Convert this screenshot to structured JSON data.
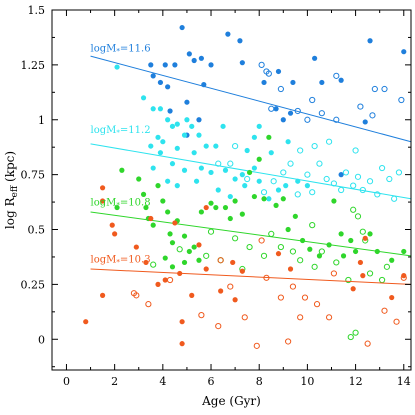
{
  "chart_data": {
    "type": "scatter",
    "title": "",
    "xlabel": "Age (Gyr)",
    "ylabel": "log R",
    "ylabel_sub": "eff",
    "ylabel_unit": " (kpc)",
    "xlim": [
      -0.6,
      14.3
    ],
    "ylim": [
      -0.14,
      1.5
    ],
    "xticks": [
      0,
      2,
      4,
      6,
      8,
      10,
      12,
      14
    ],
    "xtick_labels": [
      "0",
      "2",
      "4",
      "6",
      "8",
      "10",
      "12",
      "14"
    ],
    "yticks": [
      0,
      0.25,
      0.5,
      0.75,
      1.0,
      1.25,
      1.5
    ],
    "ytick_labels": [
      "0",
      "0.25",
      "0.5",
      "0.75",
      "1",
      "1.25",
      "1.5"
    ],
    "grid": false,
    "series": [
      {
        "name": "logM*=11.6",
        "label_main": "logM",
        "label_sub": "*",
        "label_value": "=11.6",
        "label_anchor": [
          1.0,
          1.31
        ],
        "color": "#1f7fdc",
        "fit": {
          "x": [
            1.0,
            14.3
          ],
          "y": [
            1.29,
            0.9
          ]
        },
        "filled": [
          [
            3.5,
            1.25
          ],
          [
            4.1,
            1.25
          ],
          [
            3.6,
            1.2
          ],
          [
            3.9,
            1.17
          ],
          [
            4.2,
            1.15
          ],
          [
            4.5,
            1.25
          ],
          [
            4.8,
            1.42
          ],
          [
            5.1,
            1.3
          ],
          [
            5.3,
            1.27
          ],
          [
            5.6,
            1.28
          ],
          [
            5.7,
            1.16
          ],
          [
            6.0,
            1.25
          ],
          [
            5.0,
            1.08
          ],
          [
            4.3,
            1.04
          ],
          [
            5.5,
            1.0
          ],
          [
            5.0,
            0.93
          ],
          [
            6.7,
            1.39
          ],
          [
            7.2,
            1.36
          ],
          [
            7.3,
            1.26
          ],
          [
            8.2,
            1.17
          ],
          [
            8.8,
            1.22
          ],
          [
            9.4,
            1.17
          ],
          [
            9.3,
            1.03
          ],
          [
            8.7,
            1.05
          ],
          [
            9.0,
            1.0
          ],
          [
            10.3,
            1.28
          ],
          [
            10.6,
            1.17
          ],
          [
            11.4,
            1.18
          ],
          [
            12.6,
            1.36
          ],
          [
            14.0,
            1.31
          ],
          [
            12.4,
            0.99
          ],
          [
            11.4,
            0.75
          ]
        ],
        "open": [
          [
            8.3,
            1.22
          ],
          [
            8.4,
            1.21
          ],
          [
            8.9,
            1.14
          ],
          [
            8.5,
            1.05
          ],
          [
            9.6,
            1.04
          ],
          [
            10.0,
            1.0
          ],
          [
            10.6,
            1.03
          ],
          [
            11.2,
            1.2
          ],
          [
            12.8,
            1.14
          ],
          [
            13.2,
            1.14
          ],
          [
            12.2,
            1.06
          ],
          [
            12.7,
            1.02
          ],
          [
            13.9,
            1.09
          ],
          [
            11.2,
            1.0
          ],
          [
            10.2,
            1.09
          ],
          [
            8.1,
            1.25
          ]
        ]
      },
      {
        "name": "logM*=11.2",
        "label_main": "logM",
        "label_sub": "*",
        "label_value": "=11.2",
        "label_anchor": [
          1.0,
          0.94
        ],
        "color": "#2ee3ee",
        "fit": {
          "x": [
            1.0,
            14.3
          ],
          "y": [
            0.89,
            0.64
          ]
        },
        "filled": [
          [
            2.1,
            1.24
          ],
          [
            3.2,
            1.1
          ],
          [
            3.6,
            1.05
          ],
          [
            3.9,
            1.05
          ],
          [
            4.2,
            1.0
          ],
          [
            4.4,
            0.97
          ],
          [
            4.6,
            0.98
          ],
          [
            4.9,
            0.93
          ],
          [
            5.2,
            0.97
          ],
          [
            5.5,
            0.93
          ],
          [
            4.0,
            0.9
          ],
          [
            3.5,
            0.88
          ],
          [
            3.9,
            0.85
          ],
          [
            4.6,
            0.87
          ],
          [
            5.3,
            0.85
          ],
          [
            5.8,
            0.88
          ],
          [
            6.2,
            0.88
          ],
          [
            4.4,
            0.8
          ],
          [
            4.9,
            0.77
          ],
          [
            5.6,
            0.78
          ],
          [
            6.0,
            0.76
          ],
          [
            6.6,
            0.77
          ],
          [
            7.0,
            0.73
          ],
          [
            7.3,
            0.75
          ],
          [
            7.8,
            0.78
          ],
          [
            4.2,
            0.72
          ],
          [
            4.6,
            0.7
          ],
          [
            5.4,
            0.72
          ],
          [
            6.3,
            0.68
          ],
          [
            6.8,
            0.65
          ],
          [
            7.4,
            0.7
          ],
          [
            8.0,
            0.72
          ],
          [
            8.4,
            0.64
          ],
          [
            8.8,
            0.68
          ],
          [
            9.1,
            0.7
          ],
          [
            9.6,
            0.72
          ],
          [
            10.0,
            0.7
          ],
          [
            3.6,
            0.78
          ],
          [
            3.8,
            0.92
          ],
          [
            5.0,
            1.0
          ],
          [
            7.8,
            0.92
          ],
          [
            8.5,
            0.85
          ],
          [
            9.2,
            0.9
          ],
          [
            6.5,
            0.97
          ],
          [
            7.5,
            0.86
          ],
          [
            8.0,
            0.97
          ]
        ],
        "open": [
          [
            6.3,
            0.8
          ],
          [
            6.8,
            0.8
          ],
          [
            7.0,
            0.88
          ],
          [
            7.5,
            0.73
          ],
          [
            8.2,
            0.67
          ],
          [
            8.6,
            0.72
          ],
          [
            9.0,
            0.76
          ],
          [
            9.3,
            0.8
          ],
          [
            9.6,
            0.66
          ],
          [
            10.0,
            0.75
          ],
          [
            10.2,
            0.67
          ],
          [
            10.5,
            0.8
          ],
          [
            10.8,
            0.73
          ],
          [
            10.9,
            0.9
          ],
          [
            11.1,
            0.71
          ],
          [
            11.4,
            0.68
          ],
          [
            11.6,
            0.76
          ],
          [
            11.9,
            0.7
          ],
          [
            12.1,
            0.74
          ],
          [
            12.3,
            0.68
          ],
          [
            12.6,
            0.72
          ],
          [
            12.9,
            0.66
          ],
          [
            13.1,
            0.78
          ],
          [
            13.4,
            0.73
          ],
          [
            13.6,
            0.64
          ],
          [
            13.8,
            0.76
          ],
          [
            9.7,
            0.86
          ],
          [
            10.3,
            0.88
          ],
          [
            12.0,
            0.86
          ]
        ]
      },
      {
        "name": "logM*=10.8",
        "label_main": "logM",
        "label_sub": "*",
        "label_value": "=10.8",
        "label_anchor": [
          1.0,
          0.61
        ],
        "color": "#2fd62b",
        "fit": {
          "x": [
            1.0,
            14.3
          ],
          "y": [
            0.58,
            0.38
          ]
        },
        "filled": [
          [
            2.1,
            0.6
          ],
          [
            2.3,
            0.77
          ],
          [
            3.0,
            0.73
          ],
          [
            3.2,
            0.66
          ],
          [
            3.3,
            0.6
          ],
          [
            3.4,
            0.55
          ],
          [
            3.6,
            0.52
          ],
          [
            3.8,
            0.7
          ],
          [
            4.0,
            0.63
          ],
          [
            4.2,
            0.58
          ],
          [
            4.3,
            0.48
          ],
          [
            4.4,
            0.44
          ],
          [
            4.6,
            0.54
          ],
          [
            4.9,
            0.47
          ],
          [
            5.1,
            0.4
          ],
          [
            5.3,
            0.42
          ],
          [
            5.5,
            0.36
          ],
          [
            4.9,
            0.35
          ],
          [
            4.1,
            0.37
          ],
          [
            4.4,
            0.33
          ],
          [
            6.0,
            0.62
          ],
          [
            6.2,
            0.6
          ],
          [
            6.6,
            0.6
          ],
          [
            7.0,
            0.63
          ],
          [
            7.3,
            0.57
          ],
          [
            7.8,
            0.65
          ],
          [
            8.2,
            0.64
          ],
          [
            8.7,
            0.61
          ],
          [
            9.0,
            0.64
          ],
          [
            9.5,
            0.56
          ],
          [
            9.8,
            0.45
          ],
          [
            10.1,
            0.41
          ],
          [
            10.5,
            0.38
          ],
          [
            10.9,
            0.43
          ],
          [
            11.4,
            0.48
          ],
          [
            11.5,
            0.38
          ],
          [
            11.8,
            0.45
          ],
          [
            12.0,
            0.4
          ],
          [
            12.6,
            0.48
          ],
          [
            12.9,
            0.4
          ],
          [
            13.5,
            0.36
          ],
          [
            14.0,
            0.4
          ],
          [
            8.4,
            0.92
          ],
          [
            8.0,
            0.82
          ],
          [
            7.6,
            0.76
          ],
          [
            5.6,
            0.58
          ],
          [
            6.8,
            0.55
          ],
          [
            9.2,
            0.5
          ],
          [
            11.1,
            0.63
          ]
        ],
        "open": [
          [
            3.6,
            0.34
          ],
          [
            4.7,
            0.41
          ],
          [
            5.8,
            0.38
          ],
          [
            6.4,
            0.36
          ],
          [
            7.0,
            0.46
          ],
          [
            7.6,
            0.42
          ],
          [
            8.2,
            0.38
          ],
          [
            8.5,
            0.48
          ],
          [
            8.9,
            0.42
          ],
          [
            9.4,
            0.4
          ],
          [
            9.7,
            0.36
          ],
          [
            10.3,
            0.33
          ],
          [
            10.6,
            0.4
          ],
          [
            11.2,
            0.35
          ],
          [
            11.9,
            0.59
          ],
          [
            12.1,
            0.56
          ],
          [
            12.3,
            0.49
          ],
          [
            12.4,
            0.45
          ],
          [
            12.6,
            0.3
          ],
          [
            13.1,
            0.27
          ],
          [
            13.3,
            0.33
          ],
          [
            11.7,
            0.27
          ],
          [
            12.0,
            0.03
          ],
          [
            11.8,
            0.01
          ],
          [
            7.3,
            0.32
          ],
          [
            6.0,
            0.49
          ],
          [
            10.2,
            0.52
          ]
        ]
      },
      {
        "name": "logM*=10.3",
        "label_main": "logM",
        "label_sub": "*",
        "label_value": "=10.3",
        "label_anchor": [
          1.0,
          0.35
        ],
        "color": "#f05a1e",
        "fit": {
          "x": [
            1.0,
            14.3
          ],
          "y": [
            0.32,
            0.25
          ]
        },
        "filled": [
          [
            1.5,
            0.69
          ],
          [
            1.5,
            0.63
          ],
          [
            1.5,
            0.2
          ],
          [
            1.9,
            0.52
          ],
          [
            2.0,
            0.48
          ],
          [
            2.9,
            0.42
          ],
          [
            3.3,
            0.35
          ],
          [
            3.5,
            0.55
          ],
          [
            3.8,
            0.25
          ],
          [
            4.1,
            0.27
          ],
          [
            4.5,
            0.53
          ],
          [
            4.7,
            0.3
          ],
          [
            5.2,
            0.2
          ],
          [
            5.5,
            0.43
          ],
          [
            5.8,
            0.32
          ],
          [
            6.4,
            0.22
          ],
          [
            6.9,
            0.35
          ],
          [
            7.3,
            0.31
          ],
          [
            4.8,
            0.08
          ],
          [
            4.8,
            -0.02
          ],
          [
            5.8,
            0.6
          ],
          [
            7.0,
            0.18
          ],
          [
            8.8,
            0.39
          ],
          [
            9.3,
            0.32
          ],
          [
            12.2,
            0.35
          ],
          [
            12.3,
            0.29
          ],
          [
            12.4,
            0.46
          ],
          [
            11.9,
            0.23
          ],
          [
            13.5,
            0.19
          ],
          [
            14.0,
            0.29
          ],
          [
            0.8,
            0.08
          ]
        ],
        "open": [
          [
            2.9,
            0.2
          ],
          [
            3.4,
            0.16
          ],
          [
            4.3,
            0.27
          ],
          [
            5.6,
            0.11
          ],
          [
            6.3,
            0.06
          ],
          [
            6.8,
            0.24
          ],
          [
            7.4,
            0.1
          ],
          [
            8.3,
            0.28
          ],
          [
            8.9,
            0.19
          ],
          [
            9.4,
            0.24
          ],
          [
            9.9,
            0.19
          ],
          [
            10.4,
            0.16
          ],
          [
            10.9,
            0.1
          ],
          [
            7.9,
            -0.03
          ],
          [
            9.2,
            -0.01
          ],
          [
            9.7,
            0.1
          ],
          [
            11.1,
            0.3
          ],
          [
            12.5,
            -0.02
          ],
          [
            13.2,
            0.13
          ],
          [
            13.7,
            0.08
          ],
          [
            14.0,
            0.28
          ],
          [
            2.8,
            0.21
          ],
          [
            6.4,
            0.36
          ],
          [
            8.1,
            0.45
          ]
        ]
      }
    ]
  }
}
